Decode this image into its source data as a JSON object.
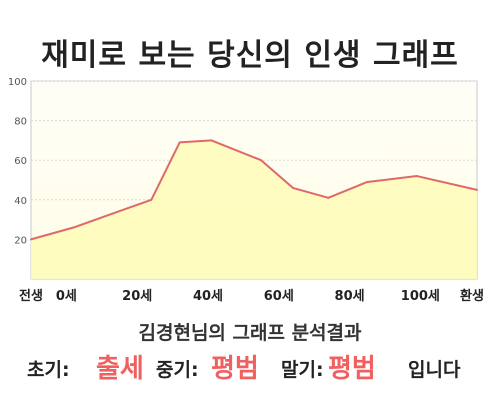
{
  "title": "재미로 보는 당신의 인생 그래프",
  "subtitle": "김경현님의 그래프 분석결과",
  "result": {
    "early_label": "초기:",
    "early_value": "출세",
    "mid_label": "중기:",
    "mid_value": "평범",
    "late_label": "말기:",
    "late_value": "평범",
    "ending": "입니다"
  },
  "colors": {
    "line": "#e06868",
    "fill": "#fffbb8",
    "accent": "#f06060"
  },
  "chart_data": {
    "type": "area",
    "ylim": [
      0,
      100
    ],
    "yticks": [
      20,
      40,
      60,
      80,
      100
    ],
    "xticks": [
      {
        "x": -10,
        "label": "전생"
      },
      {
        "x": 0,
        "label": "0세"
      },
      {
        "x": 20,
        "label": "20세"
      },
      {
        "x": 40,
        "label": "40세"
      },
      {
        "x": 60,
        "label": "60세"
      },
      {
        "x": 80,
        "label": "80세"
      },
      {
        "x": 100,
        "label": "100세"
      },
      {
        "x": 116,
        "label": "환생"
      }
    ],
    "xlim": [
      -10,
      116
    ],
    "points": [
      {
        "x": -10,
        "y": 20
      },
      {
        "x": 2,
        "y": 26
      },
      {
        "x": 24,
        "y": 40
      },
      {
        "x": 32,
        "y": 69
      },
      {
        "x": 41,
        "y": 70
      },
      {
        "x": 55,
        "y": 60
      },
      {
        "x": 64,
        "y": 46
      },
      {
        "x": 74,
        "y": 41
      },
      {
        "x": 85,
        "y": 49
      },
      {
        "x": 99,
        "y": 52
      },
      {
        "x": 116,
        "y": 45
      }
    ],
    "grid": true
  }
}
